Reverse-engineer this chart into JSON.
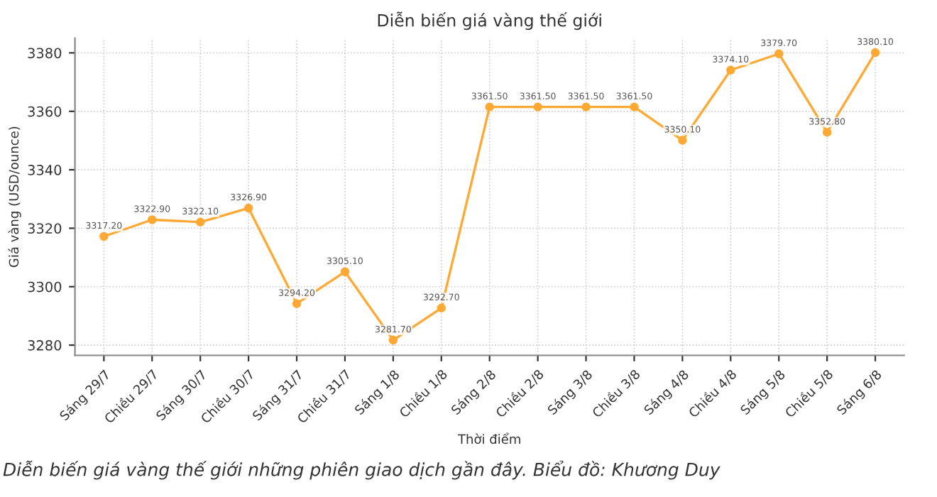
{
  "chart_data": {
    "type": "line",
    "title": "Diễn biến giá vàng thế giới",
    "xlabel": "Thời điểm",
    "ylabel": "Giá vàng (USD/ounce)",
    "categories": [
      "Sáng 29/7",
      "Chiều 29/7",
      "Sáng 30/7",
      "Chiều 30/7",
      "Sáng 31/7",
      "Chiều 31/7",
      "Sáng 1/8",
      "Chiều 1/8",
      "Sáng 2/8",
      "Chiều 2/8",
      "Sáng 3/8",
      "Chiều 3/8",
      "Sáng 4/8",
      "Chiều 4/8",
      "Sáng 5/8",
      "Chiều 5/8",
      "Sáng 6/8"
    ],
    "series": [
      {
        "color": "#ffa833",
        "values": [
          3317.2,
          3322.9,
          3322.1,
          3326.9,
          3294.2,
          3305.1,
          3281.7,
          3292.7,
          3361.5,
          3361.5,
          3361.5,
          3361.5,
          3350.1,
          3374.1,
          3379.7,
          3352.8,
          3380.1
        ],
        "value_labels": [
          "3317.20",
          "3322.90",
          "3322.10",
          "3326.90",
          "3294.20",
          "3305.10",
          "3281.70",
          "3292.70",
          "3361.50",
          "3361.50",
          "3361.50",
          "3361.50",
          "3350.10",
          "3374.10",
          "3379.70",
          "3352.80",
          "3380.10"
        ]
      }
    ],
    "ylim": [
      3276.5,
      3385
    ],
    "yticks": [
      3280,
      3300,
      3320,
      3340,
      3360,
      3380
    ],
    "grid": true,
    "marker": "circle",
    "line_style": "solid",
    "annotations": [
      "Diễn biến giá vàng thế giới những phiên giao dịch gần đây. Biểu đồ: Khương Duy"
    ]
  }
}
